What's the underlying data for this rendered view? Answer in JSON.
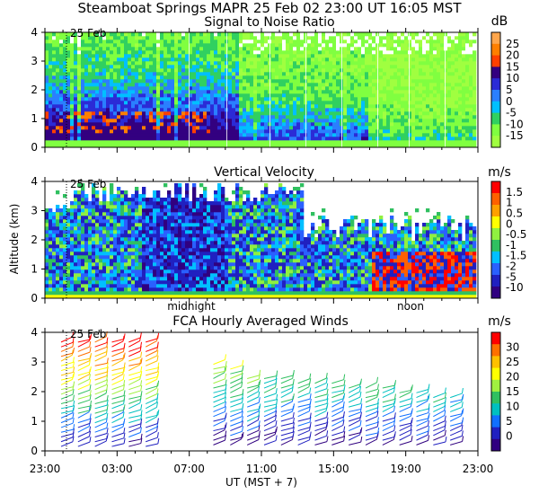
{
  "header": {
    "title": "Steamboat Springs  MAPR 25 Feb 02  23:00 UT  16:05  MST"
  },
  "chart_data": [
    {
      "type": "heatmap",
      "title": "Signal to Noise Ratio",
      "units": "dB",
      "ylabel": "",
      "ylim": [
        0,
        4
      ],
      "yticks": [
        "0",
        "1",
        "2",
        "3",
        "4"
      ],
      "date_marker": "25 Feb",
      "colorbar_labels": [
        "25",
        "20",
        "15",
        "10",
        "5",
        "0",
        "-5",
        "-10",
        "-15"
      ],
      "colors": [
        "#ffa64c",
        "#ff7f00",
        "#ff3f00",
        "#330080",
        "#2b2bd6",
        "#2a7fff",
        "#00c0ff",
        "#30d060",
        "#80ff40",
        "#a0ff40",
        "#ffffff"
      ]
    },
    {
      "type": "heatmap",
      "title": "Vertical Velocity",
      "units": "m/s",
      "ylabel": "Altitude (km)",
      "ylim": [
        0,
        4
      ],
      "yticks": [
        "0",
        "1",
        "2",
        "3",
        "4"
      ],
      "date_marker": "25 Feb",
      "time_labels": [
        "midnight",
        "noon"
      ],
      "colorbar_labels": [
        "1.5",
        "1",
        "0.5",
        "0",
        "-0.5",
        "-1",
        "-1.5",
        "-2",
        "-5",
        "-10"
      ],
      "colors": [
        "#ff0000",
        "#ff6000",
        "#ffa000",
        "#ffff00",
        "#90f040",
        "#30c060",
        "#00c0ff",
        "#2a60ff",
        "#2020c0",
        "#300080"
      ]
    },
    {
      "type": "wind_barbs",
      "title": "FCA Hourly Averaged Winds",
      "units": "m/s",
      "ylim": [
        0,
        4
      ],
      "yticks": [
        "0",
        "1",
        "2",
        "3",
        "4"
      ],
      "date_marker": "25 Feb",
      "xlabel": "UT  (MST + 7)",
      "xticks": [
        "23:00",
        "03:00",
        "07:00",
        "11:00",
        "15:00",
        "19:00",
        "23:00"
      ],
      "colorbar_labels": [
        "30",
        "25",
        "20",
        "15",
        "10",
        "5",
        "0"
      ],
      "colors": [
        "#ff0000",
        "#ff7000",
        "#ffc000",
        "#ffff00",
        "#a0f040",
        "#30c060",
        "#00c0c0",
        "#1070ff",
        "#2020c0",
        "#300080"
      ]
    }
  ]
}
